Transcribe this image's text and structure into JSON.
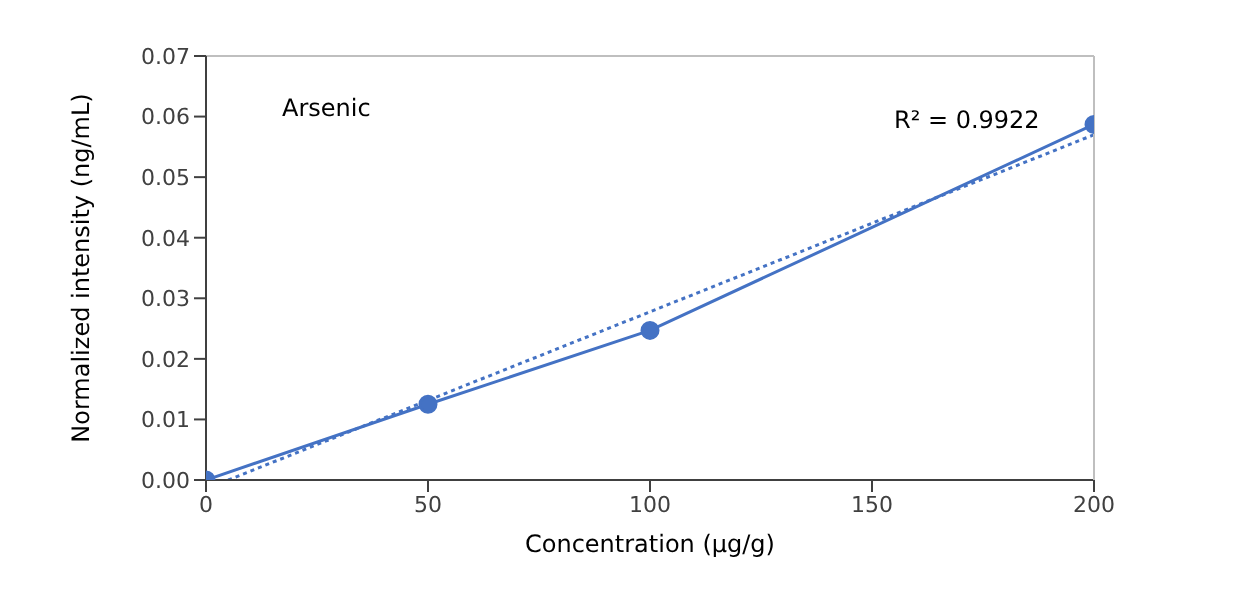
{
  "chart_data": {
    "type": "line",
    "xlabel": "Concentration (µg/g)",
    "ylabel": "Normalized intensity (ng/mL)",
    "xlim": [
      0,
      200
    ],
    "xticks": [
      0,
      50,
      100,
      150,
      200
    ],
    "ylim": [
      0,
      0.07
    ],
    "yticks": [
      {
        "value": 0,
        "label": "0.00"
      },
      0.01,
      0.02,
      0.03,
      0.04,
      0.05,
      0.06,
      0.07
    ],
    "marker": "circle",
    "line_style": "solid",
    "x": [
      0,
      50,
      100,
      200
    ],
    "series": [
      {
        "color": "#4472c4",
        "values": [
          0,
          0.0125,
          0.0247,
          0.0587
        ]
      },
      {
        "type": "line",
        "color": "#4472c4",
        "x": [
          5,
          200
        ],
        "values": [
          0,
          0.057
        ],
        "marker": "none",
        "line_style": "dotted"
      }
    ],
    "annotations": [
      "Arsenic",
      "R² = 0.9922"
    ]
  }
}
